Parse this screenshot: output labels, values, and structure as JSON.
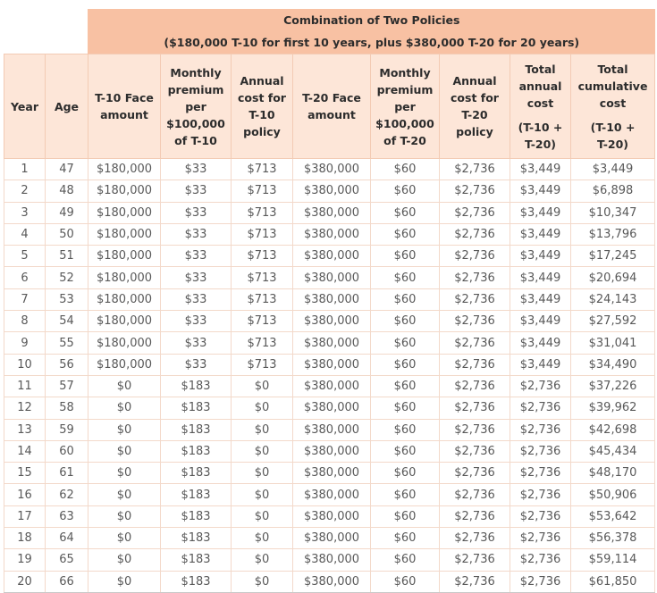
{
  "title": "Combination of Two Policies",
  "subtitle": "($180,000 T-10 for first 10 years, plus $380,000 T-20 for 20 years)",
  "headers": [
    [
      "Year"
    ],
    [
      "Age"
    ],
    [
      "T-10 Face",
      "amount"
    ],
    [
      "Monthly",
      "premium",
      "per",
      "$100,000",
      "of T-10"
    ],
    [
      "Annual",
      "cost for",
      "T-10",
      "policy"
    ],
    [
      "T-20 Face",
      "amount"
    ],
    [
      "Monthly",
      "premium",
      "per",
      "$100,000",
      "of T-20"
    ],
    [
      "Annual",
      "cost for",
      "T-20",
      "policy"
    ],
    [
      "Total",
      "annual",
      "cost",
      "",
      "(T-10 +",
      "T-20)"
    ],
    [
      "Total",
      "cumulative",
      "cost",
      "",
      "(T-10 +",
      "T-20)"
    ]
  ],
  "rows": [
    [
      "1",
      "47",
      "$180,000",
      "$33",
      "$713",
      "$380,000",
      "$60",
      "$2,736",
      "$3,449",
      "$3,449"
    ],
    [
      "2",
      "48",
      "$180,000",
      "$33",
      "$713",
      "$380,000",
      "$60",
      "$2,736",
      "$3,449",
      "$6,898"
    ],
    [
      "3",
      "49",
      "$180,000",
      "$33",
      "$713",
      "$380,000",
      "$60",
      "$2,736",
      "$3,449",
      "$10,347"
    ],
    [
      "4",
      "50",
      "$180,000",
      "$33",
      "$713",
      "$380,000",
      "$60",
      "$2,736",
      "$3,449",
      "$13,796"
    ],
    [
      "5",
      "51",
      "$180,000",
      "$33",
      "$713",
      "$380,000",
      "$60",
      "$2,736",
      "$3,449",
      "$17,245"
    ],
    [
      "6",
      "52",
      "$180,000",
      "$33",
      "$713",
      "$380,000",
      "$60",
      "$2,736",
      "$3,449",
      "$20,694"
    ],
    [
      "7",
      "53",
      "$180,000",
      "$33",
      "$713",
      "$380,000",
      "$60",
      "$2,736",
      "$3,449",
      "$24,143"
    ],
    [
      "8",
      "54",
      "$180,000",
      "$33",
      "$713",
      "$380,000",
      "$60",
      "$2,736",
      "$3,449",
      "$27,592"
    ],
    [
      "9",
      "55",
      "$180,000",
      "$33",
      "$713",
      "$380,000",
      "$60",
      "$2,736",
      "$3,449",
      "$31,041"
    ],
    [
      "10",
      "56",
      "$180,000",
      "$33",
      "$713",
      "$380,000",
      "$60",
      "$2,736",
      "$3,449",
      "$34,490"
    ],
    [
      "11",
      "57",
      "$0",
      "$183",
      "$0",
      "$380,000",
      "$60",
      "$2,736",
      "$2,736",
      "$37,226"
    ],
    [
      "12",
      "58",
      "$0",
      "$183",
      "$0",
      "$380,000",
      "$60",
      "$2,736",
      "$2,736",
      "$39,962"
    ],
    [
      "13",
      "59",
      "$0",
      "$183",
      "$0",
      "$380,000",
      "$60",
      "$2,736",
      "$2,736",
      "$42,698"
    ],
    [
      "14",
      "60",
      "$0",
      "$183",
      "$0",
      "$380,000",
      "$60",
      "$2,736",
      "$2,736",
      "$45,434"
    ],
    [
      "15",
      "61",
      "$0",
      "$183",
      "$0",
      "$380,000",
      "$60",
      "$2,736",
      "$2,736",
      "$48,170"
    ],
    [
      "16",
      "62",
      "$0",
      "$183",
      "$0",
      "$380,000",
      "$60",
      "$2,736",
      "$2,736",
      "$50,906"
    ],
    [
      "17",
      "63",
      "$0",
      "$183",
      "$0",
      "$380,000",
      "$60",
      "$2,736",
      "$2,736",
      "$53,642"
    ],
    [
      "18",
      "64",
      "$0",
      "$183",
      "$0",
      "$380,000",
      "$60",
      "$2,736",
      "$2,736",
      "$56,378"
    ],
    [
      "19",
      "65",
      "$0",
      "$183",
      "$0",
      "$380,000",
      "$60",
      "$2,736",
      "$2,736",
      "$59,114"
    ],
    [
      "20",
      "66",
      "$0",
      "$183",
      "$0",
      "$380,000",
      "$60",
      "$2,736",
      "$2,736",
      "$61,850"
    ]
  ],
  "colors": {
    "banner_bg": "#f8c1a3",
    "header_bg": "#fde6d8",
    "grid": "#f3d9ca",
    "text": "#595959"
  }
}
